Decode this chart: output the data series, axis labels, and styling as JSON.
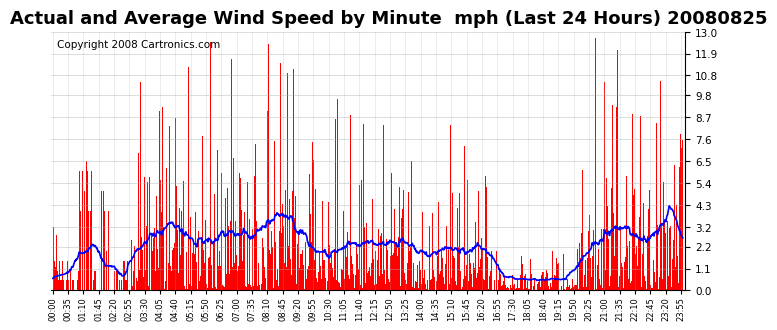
{
  "title": "Actual and Average Wind Speed by Minute  mph (Last 24 Hours) 20080825",
  "copyright": "Copyright 2008 Cartronics.com",
  "ylabel_right": "",
  "yticks": [
    0.0,
    1.1,
    2.2,
    3.2,
    4.3,
    5.4,
    6.5,
    7.6,
    8.7,
    9.8,
    10.8,
    11.9,
    13.0
  ],
  "ymax": 13.0,
  "ymin": 0.0,
  "bar_color": "#FF0000",
  "line_color": "#0000FF",
  "background_color": "#FFFFFF",
  "grid_color": "#AAAAAA",
  "title_fontsize": 13,
  "copyright_fontsize": 7.5
}
